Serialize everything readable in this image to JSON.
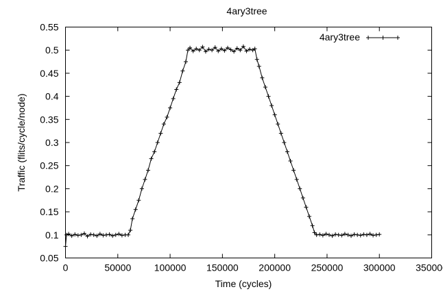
{
  "chart_data": {
    "type": "line",
    "title": "4ary3tree",
    "xlabel": "Time (cycles)",
    "ylabel": "Traffic (flits/cycle/node)",
    "xlim": [
      0,
      350000
    ],
    "ylim": [
      0.05,
      0.55
    ],
    "xticks": [
      "0",
      "50000",
      "100000",
      "150000",
      "200000",
      "250000",
      "300000",
      "350000"
    ],
    "yticks": [
      "0.05",
      "0.1",
      "0.15",
      "0.2",
      "0.25",
      "0.3",
      "0.35",
      "0.4",
      "0.45",
      "0.5",
      "0.55"
    ],
    "grid": false,
    "legend_position": "top-right",
    "marker": "plus",
    "series": [
      {
        "name": "4ary3tree",
        "x": [
          0,
          1000,
          3000,
          6000,
          9000,
          12000,
          15000,
          18000,
          21000,
          24000,
          27000,
          30000,
          33000,
          36000,
          39000,
          42000,
          45000,
          48000,
          51000,
          54000,
          57000,
          60000,
          62000,
          64000,
          67000,
          70000,
          73000,
          76000,
          79000,
          82000,
          85000,
          88000,
          91000,
          94000,
          97000,
          100000,
          103000,
          106000,
          109000,
          112000,
          115000,
          117000,
          119000,
          122000,
          125000,
          128000,
          131000,
          134000,
          137000,
          140000,
          143000,
          146000,
          149000,
          152000,
          155000,
          158000,
          161000,
          164000,
          167000,
          170000,
          173000,
          176000,
          179000,
          181000,
          183000,
          185000,
          188000,
          191000,
          194000,
          197000,
          200000,
          203000,
          206000,
          209000,
          212000,
          215000,
          218000,
          221000,
          224000,
          227000,
          230000,
          233000,
          236000,
          238000,
          240000,
          243000,
          246000,
          249000,
          252000,
          255000,
          258000,
          261000,
          264000,
          267000,
          270000,
          273000,
          276000,
          279000,
          282000,
          285000,
          288000,
          291000,
          294000,
          297000,
          300000
        ],
        "y": [
          0.075,
          0.1,
          0.102,
          0.098,
          0.101,
          0.099,
          0.1,
          0.103,
          0.097,
          0.101,
          0.1,
          0.098,
          0.102,
          0.099,
          0.1,
          0.101,
          0.098,
          0.1,
          0.102,
          0.099,
          0.1,
          0.1,
          0.11,
          0.135,
          0.155,
          0.175,
          0.2,
          0.22,
          0.24,
          0.265,
          0.28,
          0.3,
          0.32,
          0.34,
          0.355,
          0.375,
          0.395,
          0.415,
          0.43,
          0.455,
          0.475,
          0.5,
          0.505,
          0.498,
          0.503,
          0.5,
          0.507,
          0.497,
          0.502,
          0.5,
          0.506,
          0.498,
          0.503,
          0.499,
          0.505,
          0.501,
          0.497,
          0.504,
          0.5,
          0.508,
          0.498,
          0.502,
          0.5,
          0.503,
          0.48,
          0.465,
          0.44,
          0.42,
          0.4,
          0.38,
          0.36,
          0.34,
          0.32,
          0.3,
          0.28,
          0.26,
          0.24,
          0.22,
          0.2,
          0.18,
          0.16,
          0.14,
          0.12,
          0.105,
          0.1,
          0.101,
          0.099,
          0.102,
          0.1,
          0.098,
          0.101,
          0.1,
          0.099,
          0.102,
          0.1,
          0.098,
          0.101,
          0.1,
          0.099,
          0.101,
          0.1,
          0.102,
          0.099,
          0.1,
          0.101
        ]
      }
    ]
  }
}
